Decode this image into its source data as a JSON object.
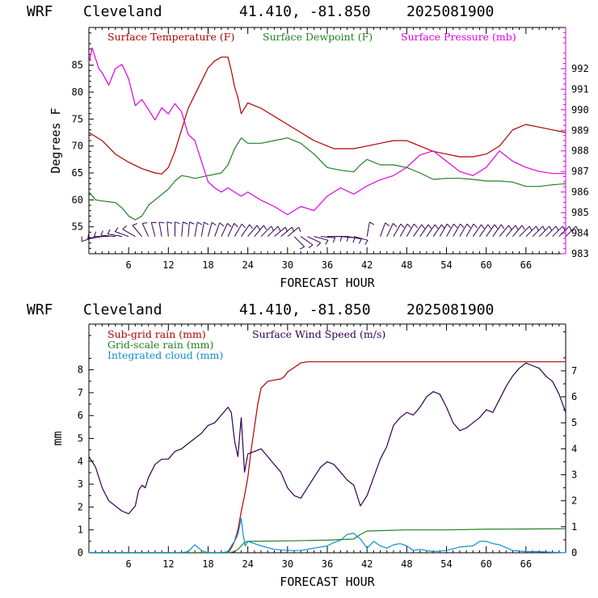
{
  "chart_data": [
    {
      "type": "line",
      "header": {
        "model": "WRF",
        "location": "Cleveland",
        "coords": "41.410, -81.850",
        "run": "2025081900"
      },
      "xlabel": "FORECAST HOUR",
      "ylabel": "Degrees F",
      "xlim": [
        0,
        72
      ],
      "ylim": [
        50,
        92
      ],
      "y2lim": [
        983,
        994
      ],
      "x_ticks": [
        6,
        12,
        18,
        24,
        30,
        36,
        42,
        48,
        54,
        60,
        66
      ],
      "y_ticks": [
        55,
        60,
        65,
        70,
        75,
        80,
        85
      ],
      "y2_ticks": [
        983,
        984,
        985,
        986,
        987,
        988,
        989,
        990,
        991,
        992
      ],
      "legend": [
        {
          "label": "Surface Temperature (F)",
          "color": "#b00000"
        },
        {
          "label": "Surface Dewpoint (F)",
          "color": "#208020"
        },
        {
          "label": "Surface Pressure (mb)",
          "color": "#e000e0"
        }
      ],
      "series": [
        {
          "name": "Surface Temperature (F)",
          "color": "#b00000",
          "axis": "left",
          "x": [
            0,
            2,
            4,
            6,
            8,
            10,
            11,
            12,
            13,
            14,
            15,
            16,
            17,
            18,
            19,
            20,
            21,
            21.5,
            22,
            22.5,
            23,
            24,
            25,
            26,
            28,
            30,
            32,
            34,
            36,
            37,
            38,
            40,
            42,
            44,
            46,
            48,
            50,
            52,
            54,
            56,
            58,
            60,
            62,
            64,
            66,
            68,
            70,
            72
          ],
          "y": [
            72.5,
            71,
            68.5,
            67,
            65.8,
            65,
            64.8,
            66,
            69,
            73,
            77,
            79.5,
            82,
            84.5,
            85.8,
            86.5,
            86.5,
            84,
            81,
            79,
            76,
            78,
            77.5,
            77,
            75.5,
            74,
            72.5,
            71,
            70,
            69.5,
            69.5,
            69.5,
            70,
            70.5,
            71,
            71,
            70,
            69,
            68.5,
            68,
            68,
            68.5,
            70,
            73,
            74,
            73.5,
            73,
            72.5
          ]
        },
        {
          "name": "Surface Dewpoint (F)",
          "color": "#208020",
          "axis": "left",
          "x": [
            0,
            1,
            2,
            4,
            5,
            6,
            7,
            8,
            9,
            10,
            12,
            13,
            14,
            15,
            16,
            18,
            20,
            21,
            22,
            23,
            24,
            26,
            28,
            30,
            32,
            34,
            36,
            38,
            40,
            41,
            42,
            44,
            46,
            48,
            50,
            52,
            54,
            56,
            58,
            60,
            62,
            64,
            66,
            68,
            70,
            72
          ],
          "y": [
            61.5,
            60,
            59.8,
            59.5,
            58.5,
            57,
            56.3,
            57,
            59,
            60,
            62,
            63.5,
            64.5,
            64.3,
            64,
            64.5,
            65,
            66.5,
            69.5,
            71.5,
            70.5,
            70.5,
            71,
            71.5,
            70.5,
            68.5,
            66,
            65.5,
            65.2,
            66.5,
            67.5,
            66.5,
            66.5,
            66,
            65,
            63.8,
            64,
            64,
            63.8,
            63.5,
            63.5,
            63.3,
            62.5,
            62.5,
            62.8,
            63
          ]
        },
        {
          "name": "Surface Pressure (mb)",
          "color": "#e000e0",
          "axis": "right",
          "x": [
            0,
            0.5,
            1,
            1.5,
            2,
            3,
            4,
            5,
            6,
            7,
            8,
            9,
            10,
            11,
            12,
            13,
            14,
            15,
            16,
            17,
            18,
            19,
            20,
            21,
            22,
            23,
            24,
            26,
            28,
            30,
            32,
            34,
            36,
            38,
            40,
            42,
            44,
            46,
            48,
            50,
            52,
            54,
            56,
            58,
            60,
            62,
            64,
            66,
            68,
            70,
            72
          ],
          "y": [
            992.3,
            993,
            992.5,
            992,
            991.8,
            991.2,
            992,
            992.2,
            991.5,
            990.2,
            990.5,
            990,
            989.5,
            990.1,
            989.8,
            990.3,
            989.9,
            988.8,
            988.5,
            987.5,
            986.5,
            986.2,
            986,
            986.2,
            986,
            985.8,
            986,
            985.6,
            985.3,
            984.9,
            985.3,
            985.1,
            985.8,
            986.2,
            985.9,
            986.3,
            986.6,
            986.8,
            987.2,
            987.8,
            988,
            987.5,
            987,
            986.8,
            987.2,
            988,
            987.5,
            987.2,
            987,
            986.9,
            986.9
          ]
        }
      ],
      "wind_barbs": {
        "x": [
          1,
          2,
          3,
          4,
          5,
          6,
          7,
          8,
          9,
          10,
          11,
          12,
          13,
          14,
          15,
          16,
          17,
          18,
          19,
          20,
          21,
          22,
          23,
          24,
          25,
          26,
          27,
          28,
          29,
          30,
          31,
          32,
          33,
          34,
          35,
          36,
          37,
          38,
          39,
          40,
          42,
          44,
          45,
          46,
          47,
          48,
          49,
          50,
          51,
          52,
          53,
          54,
          55,
          56,
          57,
          58,
          59,
          60,
          61,
          62,
          63,
          64,
          65,
          66,
          67,
          68,
          69,
          70,
          71,
          72
        ],
        "dir": [
          250,
          260,
          270,
          275,
          280,
          290,
          300,
          320,
          335,
          345,
          350,
          355,
          0,
          5,
          5,
          10,
          10,
          15,
          20,
          25,
          25,
          30,
          35,
          40,
          40,
          45,
          45,
          50,
          50,
          50,
          135,
          125,
          115,
          105,
          95,
          90,
          90,
          95,
          100,
          105,
          10,
          20,
          25,
          30,
          30,
          30,
          35,
          35,
          35,
          35,
          30,
          30,
          30,
          30,
          30,
          35,
          35,
          35,
          35,
          40,
          40,
          40,
          45,
          45,
          45,
          45,
          45,
          45,
          45,
          45
        ],
        "speed": [
          10,
          10,
          10,
          10,
          10,
          10,
          10,
          10,
          10,
          10,
          10,
          10,
          10,
          10,
          10,
          10,
          10,
          10,
          10,
          10,
          10,
          10,
          10,
          10,
          10,
          10,
          10,
          10,
          10,
          10,
          10,
          10,
          10,
          10,
          10,
          10,
          10,
          10,
          10,
          10,
          10,
          10,
          10,
          10,
          10,
          10,
          10,
          10,
          10,
          10,
          10,
          10,
          10,
          10,
          10,
          10,
          10,
          10,
          10,
          10,
          10,
          10,
          10,
          10,
          10,
          10,
          10,
          10,
          10,
          10
        ]
      }
    },
    {
      "type": "line",
      "header": {
        "model": "WRF",
        "location": "Cleveland",
        "coords": "41.410, -81.850",
        "run": "2025081900"
      },
      "xlabel": "FORECAST HOUR",
      "ylabel": "mm",
      "xlim": [
        0,
        72
      ],
      "ylim": [
        0,
        10
      ],
      "y2lim": [
        0,
        8.8
      ],
      "x_ticks": [
        6,
        12,
        18,
        24,
        30,
        36,
        42,
        48,
        54,
        60,
        66
      ],
      "y_ticks": [
        0,
        1,
        2,
        3,
        4,
        5,
        6,
        7,
        8
      ],
      "y2_ticks": [
        0,
        1,
        2,
        3,
        4,
        5,
        6,
        7
      ],
      "legend": [
        {
          "label": "Sub-grid rain (mm)",
          "color": "#b00000"
        },
        {
          "label": "Grid-scale rain (mm)",
          "color": "#208020"
        },
        {
          "label": "Integrated cloud (mm)",
          "color": "#1090d0"
        },
        {
          "label": "Surface Wind Speed (m/s)",
          "color": "#300050"
        }
      ],
      "series": [
        {
          "name": "Sub-grid rain (mm)",
          "color": "#b00000",
          "axis": "left",
          "x": [
            0,
            21,
            21.5,
            22,
            22.5,
            23,
            23.5,
            24,
            24.5,
            25,
            25.5,
            26,
            27,
            28,
            29,
            29.5,
            30,
            31,
            32,
            33,
            72
          ],
          "y": [
            0,
            0,
            0.2,
            0.5,
            1,
            1.8,
            2.5,
            3.3,
            4.5,
            5.5,
            6.5,
            7.2,
            7.5,
            7.55,
            7.6,
            7.7,
            7.9,
            8.1,
            8.3,
            8.35,
            8.35
          ]
        },
        {
          "name": "Grid-scale rain (mm)",
          "color": "#208020",
          "axis": "left",
          "x": [
            0,
            21,
            22,
            22.5,
            23,
            23.5,
            24,
            30,
            36,
            40,
            41,
            42,
            48,
            54,
            60,
            66,
            72
          ],
          "y": [
            0,
            0,
            0.05,
            0.15,
            0.3,
            0.45,
            0.5,
            0.52,
            0.55,
            0.6,
            0.8,
            0.95,
            1,
            1,
            1.03,
            1.04,
            1.05
          ]
        },
        {
          "name": "Integrated cloud (mm)",
          "color": "#1090d0",
          "axis": "left",
          "x": [
            0,
            14,
            15,
            16,
            17,
            18,
            20,
            21,
            21.5,
            22,
            22.5,
            23,
            23.3,
            23.6,
            24,
            25,
            26,
            28,
            30,
            32,
            34,
            36,
            37,
            38,
            39,
            40,
            41,
            42,
            43,
            44,
            45,
            46,
            47,
            48,
            49,
            50,
            52,
            54,
            56,
            58,
            59,
            60,
            61,
            62,
            64,
            66,
            68,
            70,
            72
          ],
          "y": [
            0,
            0,
            0.05,
            0.35,
            0.1,
            0,
            0,
            0.05,
            0.3,
            0.5,
            0.8,
            1.5,
            0.8,
            0.3,
            0.5,
            0.4,
            0.3,
            0.15,
            0.1,
            0.1,
            0.2,
            0.3,
            0.45,
            0.55,
            0.8,
            0.85,
            0.6,
            0.2,
            0.5,
            0.3,
            0.2,
            0.35,
            0.4,
            0.3,
            0.1,
            0.15,
            0.05,
            0.1,
            0.25,
            0.3,
            0.5,
            0.5,
            0.4,
            0.35,
            0.1,
            0.05,
            0.05,
            0.02,
            0
          ]
        },
        {
          "name": "Surface Wind Speed (m/s)",
          "color": "#300050",
          "axis": "right",
          "x": [
            0,
            1,
            2,
            3,
            4,
            5,
            6,
            7,
            7.5,
            8,
            8.5,
            9,
            10,
            11,
            12,
            13,
            14,
            15,
            16,
            17,
            18,
            19,
            20,
            21,
            21.5,
            22,
            22.5,
            23,
            23.5,
            24,
            25,
            26,
            27,
            28,
            29,
            30,
            31,
            32,
            33,
            34,
            35,
            36,
            37,
            38,
            39,
            40,
            41,
            42,
            43,
            44,
            45,
            46,
            47,
            48,
            49,
            50,
            51,
            52,
            53,
            54,
            55,
            56,
            57,
            58,
            59,
            60,
            61,
            62,
            63,
            64,
            65,
            66,
            67,
            68,
            69,
            70,
            71,
            72
          ],
          "y": [
            3.7,
            3.3,
            2.5,
            2,
            1.8,
            1.6,
            1.5,
            1.8,
            2.4,
            2.6,
            2.5,
            2.9,
            3.4,
            3.6,
            3.6,
            3.9,
            4,
            4.2,
            4.4,
            4.6,
            4.9,
            5,
            5.3,
            5.6,
            5.4,
            4.3,
            3.7,
            5.2,
            3.1,
            3.8,
            3.9,
            4,
            3.7,
            3.4,
            3.1,
            2.5,
            2.2,
            2.1,
            2.5,
            2.9,
            3.3,
            3.5,
            3.4,
            3.1,
            2.8,
            2.6,
            1.8,
            2.2,
            2.9,
            3.6,
            4.1,
            4.9,
            5.2,
            5.4,
            5.3,
            5.6,
            6,
            6.2,
            6.1,
            5.6,
            5,
            4.7,
            4.8,
            5,
            5.2,
            5.5,
            5.4,
            5.9,
            6.4,
            6.8,
            7.1,
            7.3,
            7.2,
            7.1,
            6.8,
            6.6,
            6.1,
            5.4
          ]
        }
      ]
    }
  ]
}
